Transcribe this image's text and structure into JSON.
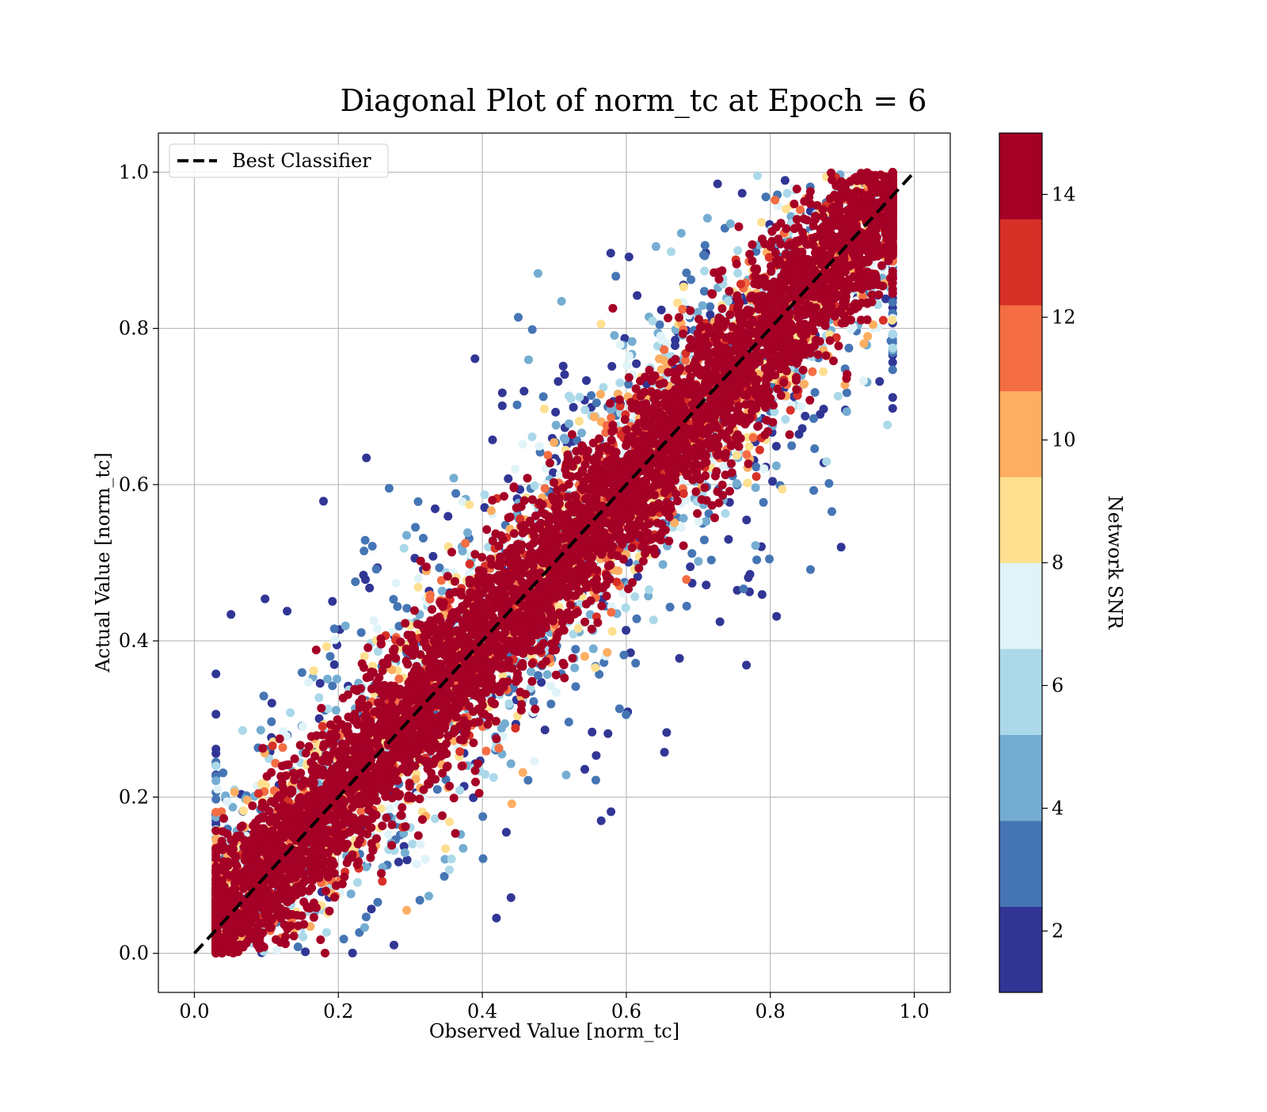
{
  "chart_data": {
    "type": "scatter",
    "title": "Diagonal Plot of norm_tc at Epoch = 6",
    "xlabel": "Observed Value [norm_tc]",
    "ylabel": "Actual Value [norm_tc]",
    "xlim": [
      -0.05,
      1.05
    ],
    "ylim": [
      -0.05,
      1.05
    ],
    "xticks": [
      0.0,
      0.2,
      0.4,
      0.6,
      0.8,
      1.0
    ],
    "yticks": [
      0.0,
      0.2,
      0.4,
      0.6,
      0.8,
      1.0
    ],
    "xtick_labels": [
      "0.0",
      "0.2",
      "0.4",
      "0.6",
      "0.8",
      "1.0"
    ],
    "ytick_labels": [
      "0.0",
      "0.2",
      "0.4",
      "0.6",
      "0.8",
      "1.0"
    ],
    "grid": true,
    "legend": {
      "position": "top-left",
      "entries": [
        "Best Classifier"
      ]
    },
    "reference_line": {
      "name": "Best Classifier",
      "style": "dashed",
      "color": "#000000",
      "x": [
        0.0,
        1.0
      ],
      "y": [
        0.0,
        1.0
      ]
    },
    "colorbar": {
      "label": "Network SNR",
      "range": [
        1,
        15
      ],
      "ticks": [
        2,
        4,
        6,
        8,
        10,
        12,
        14
      ],
      "tick_labels": [
        "2",
        "4",
        "6",
        "8",
        "10",
        "12",
        "14"
      ],
      "bins": [
        {
          "from": 1,
          "to": 2.4,
          "color": "#313695"
        },
        {
          "from": 2.4,
          "to": 3.8,
          "color": "#4575b4"
        },
        {
          "from": 3.8,
          "to": 5.2,
          "color": "#74add1"
        },
        {
          "from": 5.2,
          "to": 6.6,
          "color": "#abd9e9"
        },
        {
          "from": 6.6,
          "to": 8.0,
          "color": "#e0f3f8"
        },
        {
          "from": 8.0,
          "to": 9.4,
          "color": "#fee090"
        },
        {
          "from": 9.4,
          "to": 10.8,
          "color": "#fdae61"
        },
        {
          "from": 10.8,
          "to": 12.2,
          "color": "#f46d43"
        },
        {
          "from": 12.2,
          "to": 13.6,
          "color": "#d73027"
        },
        {
          "from": 13.6,
          "to": 15,
          "color": "#a50026"
        }
      ]
    },
    "point_distribution": {
      "description": "Dense cloud of points around y = x; high-SNR points concentrated near the diagonal, lower-SNR points spread farther off-diagonal.",
      "x_range": [
        0.03,
        0.97
      ],
      "y_range": [
        0.0,
        1.0
      ],
      "snr_range": [
        1,
        15
      ]
    }
  }
}
